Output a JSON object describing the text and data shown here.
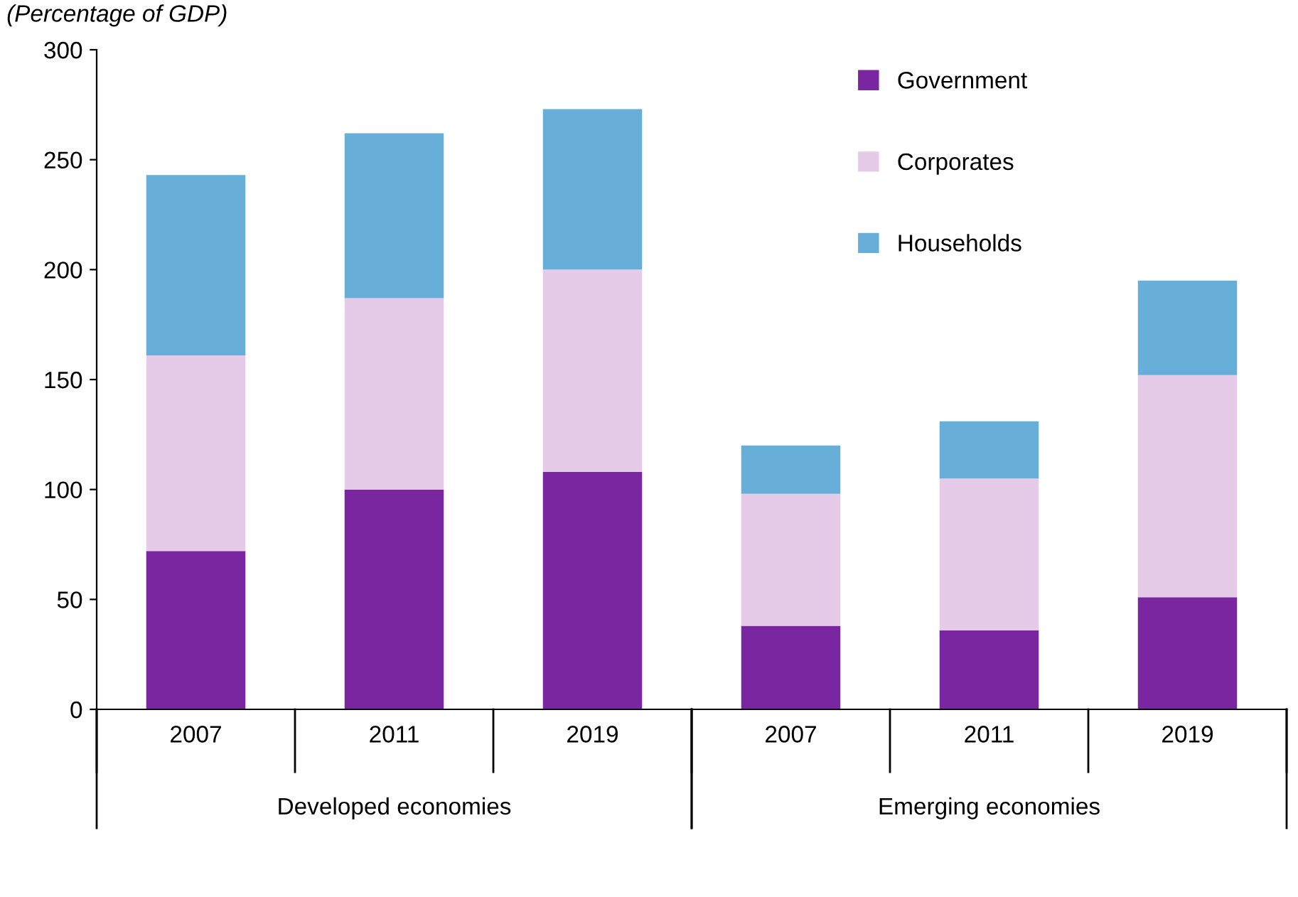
{
  "chart_data": {
    "type": "bar",
    "title": "(Percentage of GDP)",
    "categories": [
      "2007",
      "2011",
      "2019",
      "2007",
      "2011",
      "2019"
    ],
    "annotations": [
      "Developed economies",
      "Emerging economies"
    ],
    "stacked": true,
    "series": [
      {
        "name": "Government",
        "color": "#7a26a0",
        "values": [
          72,
          100,
          108,
          38,
          36,
          51
        ]
      },
      {
        "name": "Corporates",
        "color": "#e6cbe9",
        "values": [
          89,
          87,
          92,
          60,
          69,
          101
        ]
      },
      {
        "name": "Households",
        "color": "#67afd8",
        "values": [
          82,
          75,
          73,
          22,
          26,
          43
        ]
      }
    ],
    "ylim": [
      0,
      300
    ],
    "yticks": [
      0,
      50,
      100,
      150,
      200,
      250,
      300
    ],
    "grid": false,
    "legend": "top right"
  }
}
